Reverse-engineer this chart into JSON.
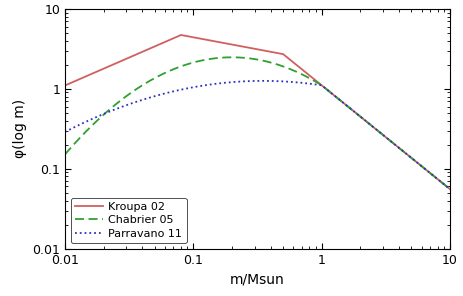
{
  "title": "",
  "xlabel": "m/Msun",
  "ylabel": "φ(log m)",
  "xlim": [
    0.01,
    10
  ],
  "ylim": [
    0.01,
    10
  ],
  "kroupa_color": "#d06060",
  "chabrier_color": "#30a030",
  "parravano_color": "#3030c0",
  "legend_labels": [
    "Kroupa 02",
    "Chabrier 05",
    "Parravano 11"
  ],
  "legend_loc": "lower left",
  "kroupa_params": {
    "alpha0": 0.3,
    "alpha1": 1.3,
    "alpha2": 2.3,
    "m1": 0.08,
    "m2": 0.5,
    "peak": 4.5,
    "val_at_001": 1.1
  },
  "chabrier_params": {
    "mc": 0.2,
    "sigma": 0.55,
    "alpha": 2.3,
    "peak": 3.0
  },
  "parravano_params": {
    "mc": 0.35,
    "sigma": 0.9,
    "alpha": 2.3,
    "peak": 3.0
  }
}
